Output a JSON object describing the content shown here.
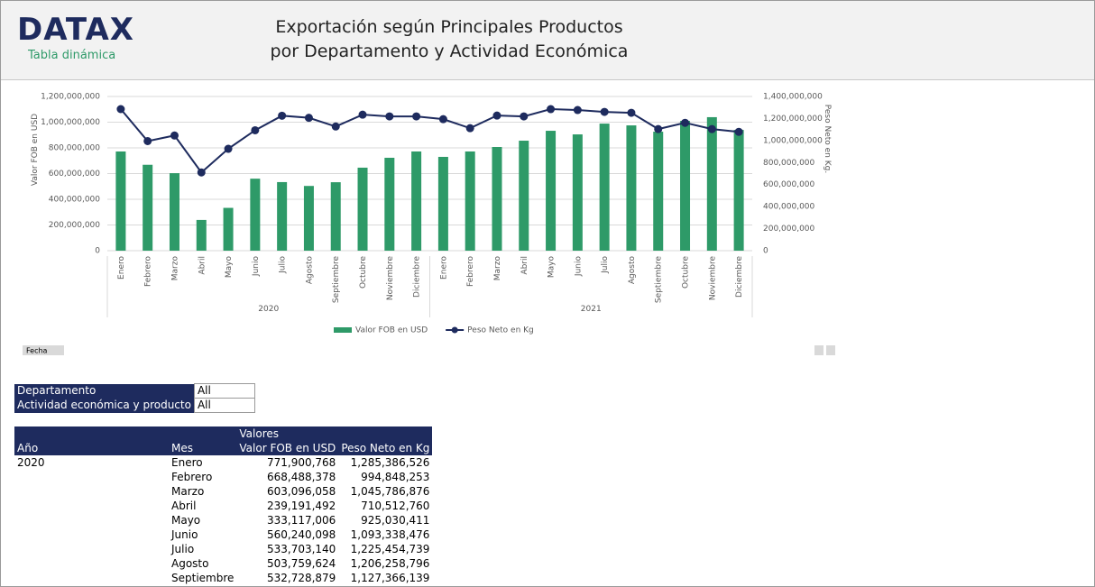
{
  "header": {
    "logo": "DATAX",
    "subtitle": "Tabla dinámica",
    "title_line1": "Exportación según Principales Productos",
    "title_line2": "por Departamento y Actividad Económica"
  },
  "chart_data": {
    "type": "combo",
    "categories": [
      "Enero",
      "Febrero",
      "Marzo",
      "Abril",
      "Mayo",
      "Junio",
      "Julio",
      "Agosto",
      "Septiembre",
      "Octubre",
      "Noviembre",
      "Diciembre",
      "Enero",
      "Febrero",
      "Marzo",
      "Abril",
      "Mayo",
      "Junio",
      "Julio",
      "Agosto",
      "Septiembre",
      "Octubre",
      "Noviembre",
      "Diciembre"
    ],
    "category_groups": [
      "2020",
      "2021"
    ],
    "y_label": "Valor FOB en USD",
    "y2_label": "Peso Neto en Kg.",
    "ylim": [
      0,
      1200000000
    ],
    "yticks": [
      0,
      {
        "value": 200000000,
        "label": "200,000,000"
      },
      {
        "value": 400000000,
        "label": "400,000,000"
      },
      {
        "value": 600000000,
        "label": "600,000,000"
      },
      {
        "value": 800000000,
        "label": "800,000,000"
      },
      {
        "value": 1000000000,
        "label": "1,000,000,000"
      },
      {
        "value": 1200000000,
        "label": "1,200,000,000"
      }
    ],
    "y2lim": [
      0,
      1400000000
    ],
    "y2ticks": [
      0,
      {
        "value": 200000000,
        "label": "200,000,000"
      },
      {
        "value": 400000000,
        "label": "400,000,000"
      },
      {
        "value": 600000000,
        "label": "600,000,000"
      },
      {
        "value": 800000000,
        "label": "800,000,000"
      },
      {
        "value": 1000000000,
        "label": "1,000,000,000"
      },
      {
        "value": 1200000000,
        "label": "1,200,000,000"
      },
      {
        "value": 1400000000,
        "label": "1,400,000,000"
      }
    ],
    "grid": true,
    "legend": "bottom",
    "series": [
      {
        "name": "Valor FOB en USD",
        "type": "bar",
        "color": "#2e9a68",
        "values": [
          771900768,
          668488378,
          603096058,
          239191492,
          333117006,
          560240098,
          533703140,
          503759624,
          532728879,
          646000000,
          723000000,
          772000000,
          730000000,
          772000000,
          807000000,
          856000000,
          933000000,
          905000000,
          989000000,
          975000000,
          926000000,
          1010000000,
          1039000000,
          940000000
        ]
      },
      {
        "name": "Peso Neto en Kg",
        "type": "line",
        "axis": "y2",
        "color": "#1e2b5e",
        "values": [
          1285386526,
          994848253,
          1045786876,
          710512760,
          925030411,
          1093338476,
          1225454739,
          1206258796,
          1127366139,
          1235000000,
          1219000000,
          1219000000,
          1194000000,
          1112000000,
          1227000000,
          1219000000,
          1285000000,
          1277000000,
          1260000000,
          1252000000,
          1104000000,
          1161000000,
          1104000000,
          1079000000
        ]
      }
    ]
  },
  "controls": {
    "date_button": "Fecha"
  },
  "filters": [
    [
      "Departamento",
      "All"
    ],
    [
      "Actividad económica y producto",
      "All"
    ]
  ],
  "table": {
    "values_header": "Valores",
    "col_year": "Año",
    "col_month": "Mes",
    "col_fob": "Valor FOB en USD",
    "col_kg": "Peso Neto en Kg",
    "year": "2020",
    "rows": [
      [
        "Enero",
        "771,900,768",
        "1,285,386,526"
      ],
      [
        "Febrero",
        "668,488,378",
        "994,848,253"
      ],
      [
        "Marzo",
        "603,096,058",
        "1,045,786,876"
      ],
      [
        "Abril",
        "239,191,492",
        "710,512,760"
      ],
      [
        "Mayo",
        "333,117,006",
        "925,030,411"
      ],
      [
        "Junio",
        "560,240,098",
        "1,093,338,476"
      ],
      [
        "Julio",
        "533,703,140",
        "1,225,454,739"
      ],
      [
        "Agosto",
        "503,759,624",
        "1,206,258,796"
      ],
      [
        "Septiembre",
        "532,728,879",
        "1,127,366,139"
      ]
    ]
  }
}
